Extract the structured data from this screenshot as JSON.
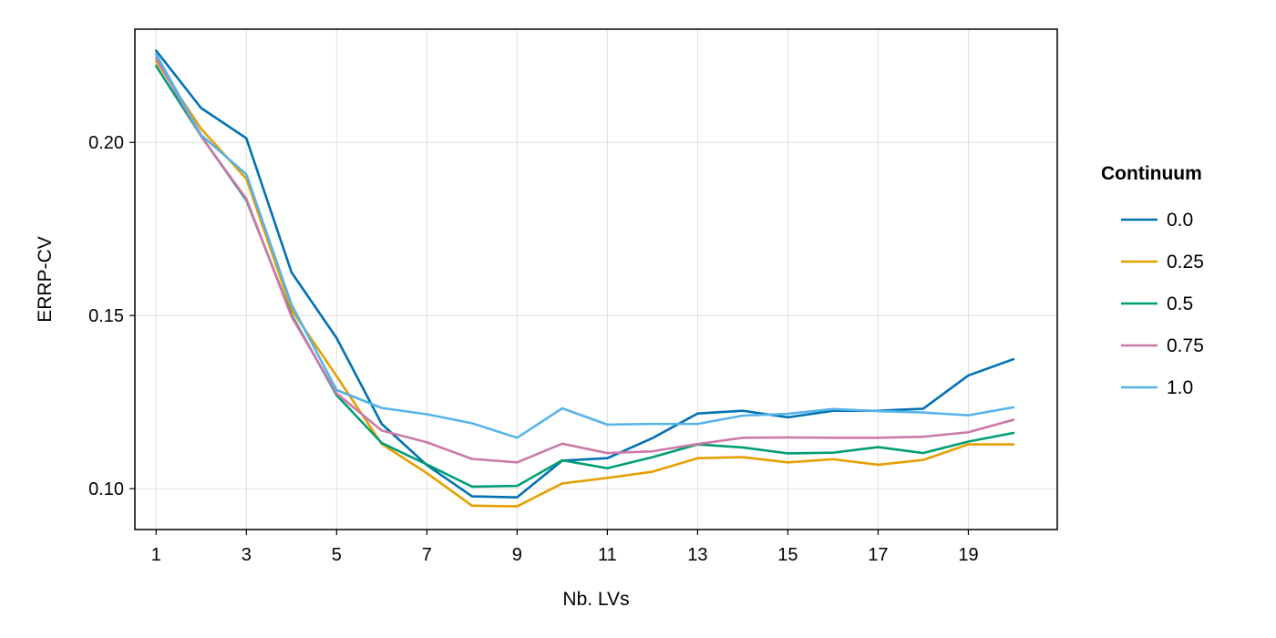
{
  "chart_data": {
    "type": "line",
    "xlabel": "Nb. LVs",
    "ylabel": "ERRP-CV",
    "x": [
      1,
      2,
      3,
      4,
      5,
      6,
      7,
      8,
      9,
      10,
      11,
      12,
      13,
      14,
      15,
      16,
      17,
      18,
      19,
      20
    ],
    "xlim": [
      0.53,
      20.97
    ],
    "ylim": [
      0.0882,
      0.2327
    ],
    "xticks": [
      1,
      3,
      5,
      7,
      9,
      11,
      13,
      15,
      17,
      19
    ],
    "xtick_labels": [
      "1",
      "3",
      "5",
      "7",
      "9",
      "11",
      "13",
      "15",
      "17",
      "19"
    ],
    "yticks": [
      0.1,
      0.15,
      0.2
    ],
    "ytick_labels": [
      "0.10",
      "0.15",
      "0.20"
    ],
    "grid": true,
    "legend": {
      "title": "Continuum",
      "position": "right"
    },
    "series": [
      {
        "name": "0.0",
        "color": "#0072B2",
        "values": [
          0.2265,
          0.2099,
          0.2012,
          0.1625,
          0.1435,
          0.1187,
          0.1068,
          0.0978,
          0.0975,
          0.1081,
          0.1088,
          0.1146,
          0.1217,
          0.1225,
          0.1206,
          0.1225,
          0.1225,
          0.1231,
          0.1327,
          0.1374
        ]
      },
      {
        "name": "0.25",
        "color": "#E69F00",
        "values": [
          0.2235,
          0.2039,
          0.1895,
          0.1517,
          0.1325,
          0.1129,
          0.1045,
          0.0951,
          0.0949,
          0.1015,
          0.1031,
          0.1049,
          0.1088,
          0.1091,
          0.1076,
          0.1085,
          0.1069,
          0.1083,
          0.1128,
          0.1128
        ]
      },
      {
        "name": "0.5",
        "color": "#009E73",
        "values": [
          0.2221,
          0.2018,
          0.1833,
          0.1502,
          0.127,
          0.1132,
          0.107,
          0.1006,
          0.1008,
          0.1082,
          0.1059,
          0.1091,
          0.1128,
          0.1119,
          0.1102,
          0.1104,
          0.112,
          0.1103,
          0.1136,
          0.1161
        ]
      },
      {
        "name": "0.75",
        "color": "#CC79A7",
        "values": [
          0.2245,
          0.2017,
          0.1837,
          0.1497,
          0.1275,
          0.1168,
          0.1134,
          0.1086,
          0.1076,
          0.113,
          0.1103,
          0.1108,
          0.1129,
          0.1147,
          0.1148,
          0.1147,
          0.1147,
          0.115,
          0.1163,
          0.1199
        ]
      },
      {
        "name": "1.0",
        "color": "#56B4E9",
        "values": [
          0.2255,
          0.2021,
          0.1908,
          0.1532,
          0.1285,
          0.1233,
          0.1215,
          0.1189,
          0.1147,
          0.1232,
          0.1185,
          0.1187,
          0.1187,
          0.1211,
          0.1216,
          0.123,
          0.1224,
          0.122,
          0.1212,
          0.1235
        ]
      }
    ]
  }
}
